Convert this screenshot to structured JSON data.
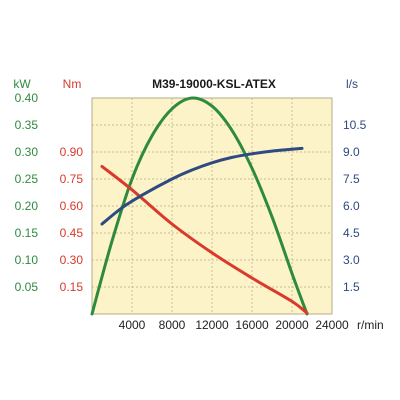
{
  "chart_data": {
    "type": "line",
    "title": "M39-19000-KSL-ATEX",
    "x_unit": "r/min",
    "xlim": [
      0,
      24000
    ],
    "x_ticks": [
      4000,
      8000,
      12000,
      16000,
      20000,
      24000
    ],
    "axes": {
      "kw": {
        "unit": "kW",
        "ticks": [
          0.05,
          0.1,
          0.15,
          0.2,
          0.25,
          0.3,
          0.35,
          0.4
        ],
        "tick_labels": [
          "0.05",
          "0.10",
          "0.15",
          "0.20",
          "0.25",
          "0.30",
          "0.35",
          "0.40"
        ],
        "range": [
          0,
          0.4
        ]
      },
      "nm": {
        "unit": "Nm",
        "ticks": [
          0.15,
          0.3,
          0.45,
          0.6,
          0.75,
          0.9
        ],
        "tick_labels": [
          "0.15",
          "0.30",
          "0.45",
          "0.60",
          "0.75",
          "0.90"
        ],
        "range": [
          0,
          1.2
        ]
      },
      "ls": {
        "unit": "l/s",
        "ticks": [
          1.5,
          3.0,
          4.5,
          6.0,
          7.5,
          9.0,
          10.5
        ],
        "tick_labels": [
          "1.5",
          "3.0",
          "4.5",
          "6.0",
          "7.5",
          "9.0",
          "10.5"
        ],
        "range": [
          0,
          12
        ]
      }
    },
    "grid": true,
    "series": [
      {
        "axis": "kw",
        "color": "#2e8b3e",
        "x": [
          0,
          2000,
          4000,
          6000,
          8000,
          10000,
          12000,
          14000,
          16000,
          18000,
          20000,
          21500
        ],
        "y": [
          0,
          0.135,
          0.25,
          0.33,
          0.38,
          0.4,
          0.385,
          0.34,
          0.27,
          0.18,
          0.075,
          0
        ]
      },
      {
        "axis": "nm",
        "color": "#d93a2b",
        "x": [
          1000,
          4000,
          8000,
          12000,
          16000,
          20000,
          21500
        ],
        "y": [
          0.82,
          0.69,
          0.5,
          0.34,
          0.2,
          0.07,
          0.005
        ]
      },
      {
        "axis": "ls",
        "color": "#2e4a80",
        "x": [
          1000,
          3000,
          5000,
          8000,
          10000,
          12000,
          14000,
          16000,
          18000,
          21000
        ],
        "y": [
          5.0,
          5.9,
          6.6,
          7.5,
          8.0,
          8.4,
          8.7,
          8.9,
          9.05,
          9.2
        ]
      }
    ]
  }
}
